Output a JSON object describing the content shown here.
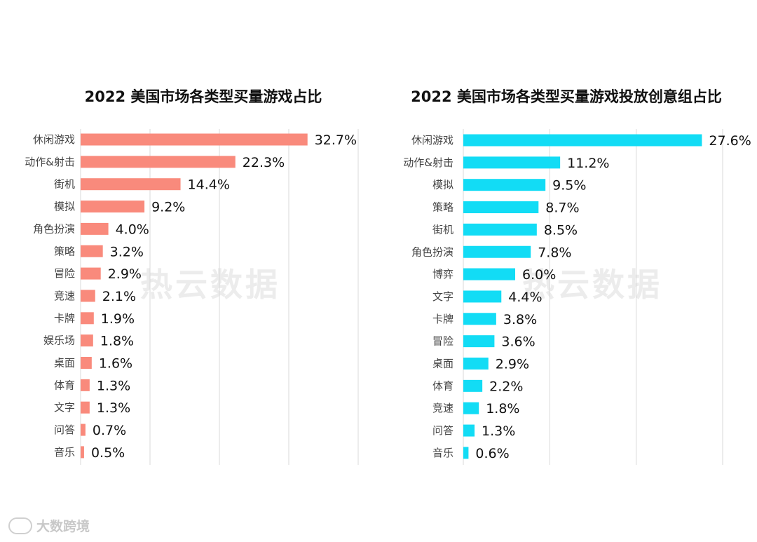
{
  "chart_data": [
    {
      "type": "bar",
      "orientation": "horizontal",
      "title": "2022 美国市场各类型买量游戏占比",
      "categories": [
        "休闲游戏",
        "动作&射击",
        "街机",
        "模拟",
        "角色扮演",
        "策略",
        "冒险",
        "竞速",
        "卡牌",
        "娱乐场",
        "桌面",
        "体育",
        "文字",
        "问答",
        "音乐"
      ],
      "values": [
        32.7,
        22.3,
        14.4,
        9.2,
        4.0,
        3.2,
        2.9,
        2.1,
        1.9,
        1.8,
        1.6,
        1.3,
        1.3,
        0.7,
        0.5
      ],
      "value_labels": [
        "32.7%",
        "22.3%",
        "14.4%",
        "9.2%",
        "4.0%",
        "3.2%",
        "2.9%",
        "2.1%",
        "1.9%",
        "1.8%",
        "1.6%",
        "1.3%",
        "1.3%",
        "0.7%",
        "0.5%"
      ],
      "xlim": [
        0,
        40
      ],
      "grid": true,
      "bar_color": "#f98a7c"
    },
    {
      "type": "bar",
      "orientation": "horizontal",
      "title": "2022 美国市场各类型买量游戏投放创意组占比",
      "categories": [
        "休闲游戏",
        "动作&射击",
        "模拟",
        "策略",
        "街机",
        "角色扮演",
        "博弈",
        "文字",
        "卡牌",
        "冒险",
        "桌面",
        "体育",
        "竞速",
        "问答",
        "音乐"
      ],
      "values": [
        27.6,
        11.2,
        9.5,
        8.7,
        8.5,
        7.8,
        6.0,
        4.4,
        3.8,
        3.6,
        2.9,
        2.2,
        1.8,
        1.3,
        0.6
      ],
      "value_labels": [
        "27.6%",
        "11.2%",
        "9.5%",
        "8.7%",
        "8.5%",
        "7.8%",
        "6.0%",
        "4.4%",
        "3.8%",
        "3.6%",
        "2.9%",
        "2.2%",
        "1.8%",
        "1.3%",
        "0.6%"
      ],
      "xlim": [
        0,
        30
      ],
      "grid": true,
      "bar_color": "#12dcf5"
    }
  ],
  "watermark": "热云数据",
  "brand": "大数跨境"
}
